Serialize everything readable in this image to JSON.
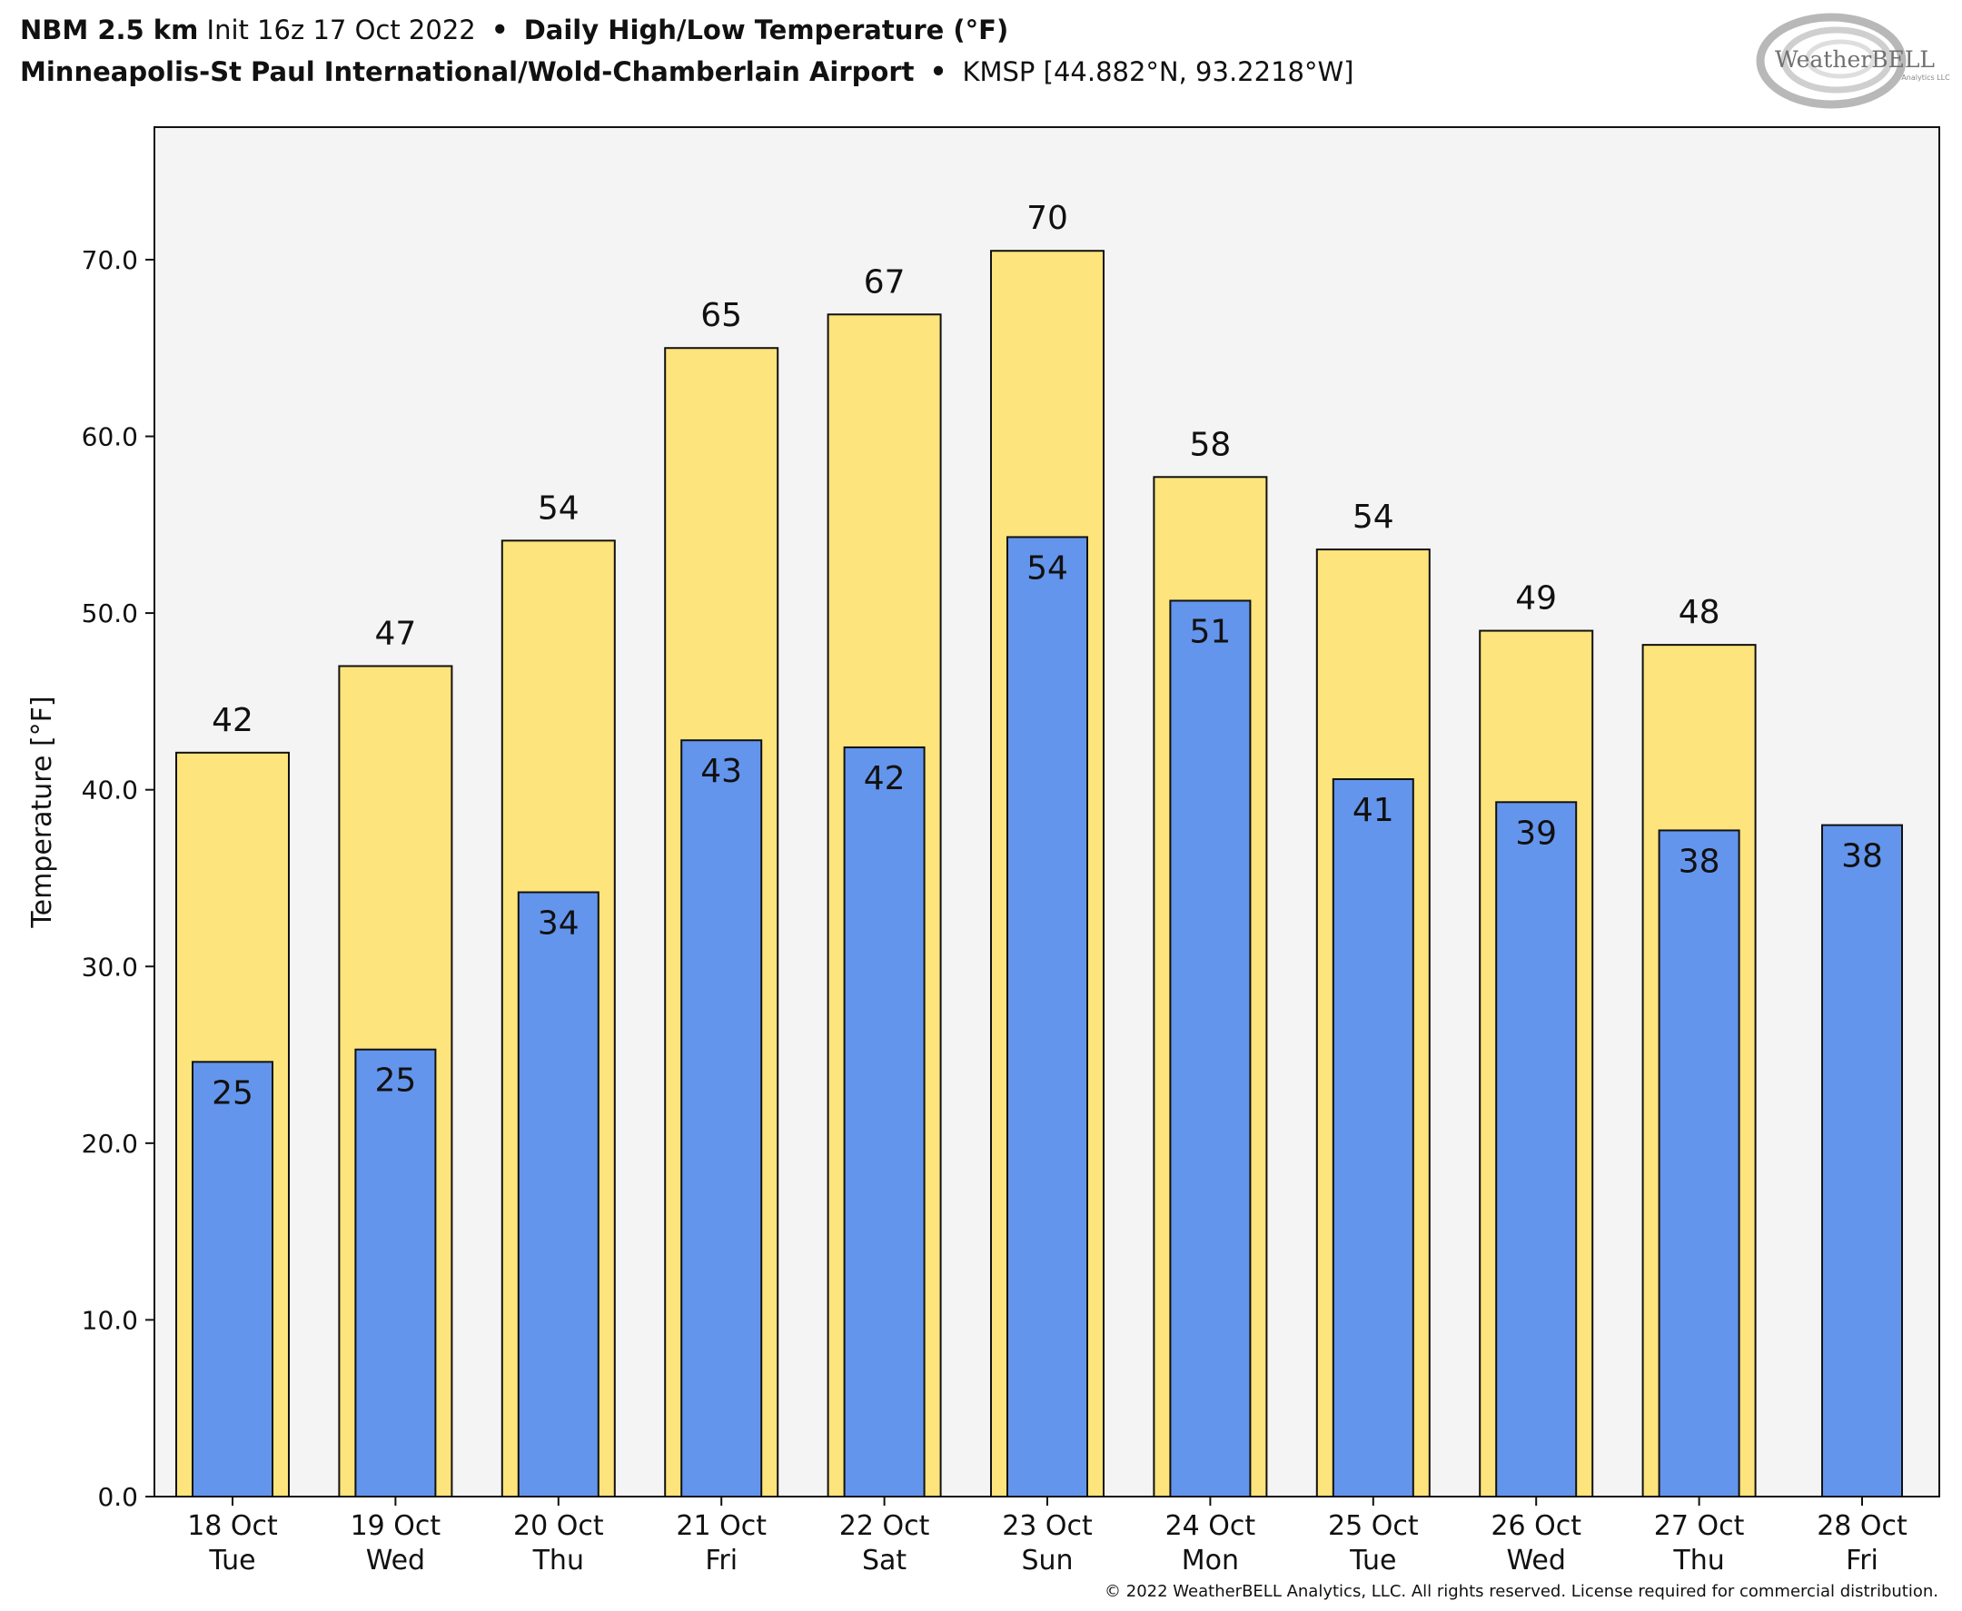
{
  "header": {
    "model": "NBM 2.5 km",
    "init": "Init 16z 17 Oct 2022",
    "sep1": "•",
    "product": "Daily High/Low Temperature (°F)",
    "station_name": "Minneapolis-St Paul International/Wold-Chamberlain Airport",
    "sep2": "•",
    "station_id_coords": "KMSP [44.882°N, 93.2218°W]"
  },
  "logo": {
    "text": "WeatherBELL",
    "subtext": "Analytics LLC"
  },
  "copyright": "© 2022 WeatherBELL Analytics, LLC. All rights reserved. License required for commercial distribution.",
  "colors": {
    "high": "#fde47c",
    "low": "#6495ec",
    "plot_bg": "#f5f4f5",
    "edge": "#111111"
  },
  "chart_data": {
    "type": "bar",
    "categories": [
      [
        "18 Oct",
        "Tue"
      ],
      [
        "19 Oct",
        "Wed"
      ],
      [
        "20 Oct",
        "Thu"
      ],
      [
        "21 Oct",
        "Fri"
      ],
      [
        "22 Oct",
        "Sat"
      ],
      [
        "23 Oct",
        "Sun"
      ],
      [
        "24 Oct",
        "Mon"
      ],
      [
        "25 Oct",
        "Tue"
      ],
      [
        "26 Oct",
        "Wed"
      ],
      [
        "27 Oct",
        "Thu"
      ],
      [
        "28 Oct",
        "Fri"
      ]
    ],
    "series": [
      {
        "values": [
          42,
          47,
          54,
          65,
          67,
          70,
          58,
          54,
          49,
          48,
          null
        ],
        "labels": [
          "42",
          "47",
          "54",
          "65",
          "67",
          "70",
          "58",
          "54",
          "49",
          "48",
          ""
        ]
      },
      {
        "values": [
          24.6,
          25.3,
          34.2,
          42.8,
          42.4,
          54.3,
          50.7,
          40.6,
          39.3,
          37.7,
          38.0
        ],
        "labels": [
          "25",
          "25",
          "34",
          "43",
          "42",
          "54",
          "51",
          "41",
          "39",
          "38",
          "38"
        ]
      }
    ],
    "high_values_precise": [
      42.1,
      47.0,
      54.1,
      65.0,
      66.9,
      70.5,
      57.7,
      53.6,
      49.0,
      48.2,
      null
    ],
    "ylabel": "Temperature [°F]",
    "xlabel": "",
    "ylim": [
      0,
      77.5
    ],
    "yticks": [
      0,
      10,
      20,
      30,
      40,
      50,
      60,
      70
    ],
    "ytick_labels": [
      "0.0",
      "10.0",
      "20.0",
      "30.0",
      "40.0",
      "50.0",
      "60.0",
      "70.0"
    ],
    "grid": false,
    "legend": "none"
  }
}
